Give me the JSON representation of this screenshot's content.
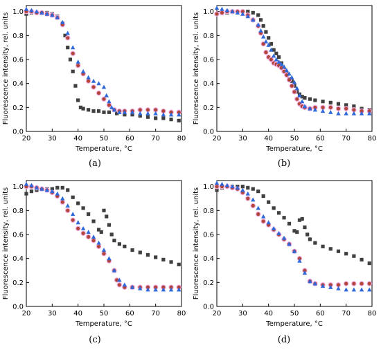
{
  "panel_labels": [
    "(a)",
    "(b)",
    "(c)",
    "(d)"
  ],
  "colors": {
    "black_series": "#404040",
    "red_series": "#b0453a",
    "blue_series": "#2f68d8",
    "pink_halo": "#f3b0e6",
    "axis": "#000000"
  },
  "chart_data": [
    {
      "type": "scatter",
      "xlabel": "Temperature, °C",
      "ylabel": "Fluorescence intensity, rel. units",
      "xlim": [
        20,
        80
      ],
      "ylim": [
        0,
        1.05
      ],
      "xticks": [
        20,
        30,
        40,
        50,
        60,
        70,
        80
      ],
      "yticks": [
        0.0,
        0.2,
        0.4,
        0.6,
        0.8,
        1.0
      ],
      "grid": false,
      "legend": "none",
      "series": [
        {
          "marker": "square",
          "color": "#404040",
          "x": [
            20,
            22,
            24,
            26,
            28,
            30,
            32,
            34,
            35,
            36,
            37,
            38,
            39,
            40,
            41,
            42,
            44,
            46,
            48,
            50,
            52,
            55,
            58,
            61,
            64,
            67,
            70,
            73,
            76,
            79
          ],
          "y": [
            0.98,
            0.99,
            0.99,
            0.99,
            0.99,
            0.98,
            0.96,
            0.9,
            0.8,
            0.7,
            0.6,
            0.5,
            0.38,
            0.26,
            0.2,
            0.19,
            0.18,
            0.17,
            0.17,
            0.16,
            0.16,
            0.15,
            0.14,
            0.14,
            0.13,
            0.12,
            0.11,
            0.11,
            0.1,
            0.09
          ]
        },
        {
          "marker": "circle",
          "color": "#b0453a",
          "x": [
            20,
            22,
            24,
            26,
            28,
            30,
            32,
            34,
            36,
            38,
            40,
            42,
            44,
            46,
            48,
            50,
            52,
            54,
            56,
            58,
            61,
            64,
            67,
            70,
            73,
            76,
            79
          ],
          "y": [
            1.0,
            1.0,
            0.99,
            0.99,
            0.98,
            0.97,
            0.95,
            0.89,
            0.78,
            0.65,
            0.55,
            0.48,
            0.42,
            0.37,
            0.32,
            0.27,
            0.22,
            0.18,
            0.17,
            0.17,
            0.17,
            0.18,
            0.18,
            0.18,
            0.17,
            0.16,
            0.16
          ]
        },
        {
          "marker": "triangle",
          "color": "#2f68d8",
          "x": [
            20,
            22,
            24,
            26,
            28,
            30,
            32,
            34,
            36,
            38,
            40,
            42,
            44,
            46,
            48,
            50,
            51,
            52,
            53,
            54,
            56,
            58,
            61,
            64,
            67,
            70,
            73,
            76,
            79
          ],
          "y": [
            1.02,
            1.01,
            1.0,
            0.99,
            0.98,
            0.97,
            0.95,
            0.91,
            0.82,
            0.7,
            0.58,
            0.5,
            0.45,
            0.42,
            0.4,
            0.37,
            0.3,
            0.25,
            0.2,
            0.18,
            0.16,
            0.16,
            0.16,
            0.15,
            0.15,
            0.15,
            0.14,
            0.14,
            0.14
          ]
        }
      ]
    },
    {
      "type": "scatter",
      "xlabel": "Temperature, °C",
      "ylabel": "Fluorescence intensity, rel. units",
      "xlim": [
        20,
        80
      ],
      "ylim": [
        0,
        1.05
      ],
      "xticks": [
        20,
        30,
        40,
        50,
        60,
        70,
        80
      ],
      "yticks": [
        0.0,
        0.2,
        0.4,
        0.6,
        0.8,
        1.0
      ],
      "grid": false,
      "legend": "none",
      "series": [
        {
          "marker": "square",
          "color": "#404040",
          "x": [
            20,
            22,
            24,
            26,
            28,
            30,
            32,
            34,
            36,
            37,
            38,
            39,
            40,
            41,
            42,
            43,
            44,
            45,
            46,
            47,
            48,
            49,
            50,
            51,
            52,
            53,
            54,
            56,
            58,
            61,
            64,
            67,
            70,
            73,
            76,
            79
          ],
          "y": [
            0.98,
            0.99,
            0.99,
            1.0,
            1.0,
            1.0,
            1.0,
            0.99,
            0.97,
            0.93,
            0.88,
            0.83,
            0.78,
            0.73,
            0.68,
            0.65,
            0.62,
            0.57,
            0.52,
            0.48,
            0.44,
            0.42,
            0.38,
            0.33,
            0.31,
            0.29,
            0.28,
            0.27,
            0.26,
            0.25,
            0.24,
            0.23,
            0.22,
            0.21,
            0.19,
            0.18
          ]
        },
        {
          "marker": "circle",
          "color": "#b0453a",
          "x": [
            20,
            22,
            24,
            26,
            28,
            30,
            32,
            34,
            36,
            37,
            38,
            39,
            40,
            41,
            42,
            43,
            44,
            45,
            46,
            47,
            48,
            49,
            50,
            51,
            52,
            53,
            54,
            56,
            58,
            61,
            64,
            67,
            70,
            73,
            76,
            79
          ],
          "y": [
            0.98,
            0.99,
            1.0,
            1.0,
            1.0,
            1.0,
            0.97,
            0.93,
            0.88,
            0.82,
            0.73,
            0.66,
            0.62,
            0.6,
            0.57,
            0.56,
            0.55,
            0.53,
            0.5,
            0.47,
            0.43,
            0.38,
            0.33,
            0.27,
            0.23,
            0.21,
            0.2,
            0.19,
            0.2,
            0.2,
            0.2,
            0.19,
            0.19,
            0.18,
            0.17,
            0.17
          ]
        },
        {
          "marker": "triangle",
          "color": "#2f68d8",
          "x": [
            20,
            22,
            24,
            26,
            28,
            30,
            32,
            34,
            36,
            37,
            38,
            39,
            40,
            41,
            42,
            43,
            44,
            45,
            46,
            47,
            48,
            49,
            50,
            51,
            52,
            53,
            54,
            56,
            58,
            61,
            64,
            67,
            70,
            73,
            76,
            79
          ],
          "y": [
            1.03,
            1.02,
            1.01,
            1.0,
            0.99,
            0.98,
            0.96,
            0.93,
            0.89,
            0.84,
            0.79,
            0.75,
            0.72,
            0.68,
            0.63,
            0.6,
            0.58,
            0.56,
            0.54,
            0.51,
            0.48,
            0.45,
            0.41,
            0.36,
            0.3,
            0.25,
            0.21,
            0.19,
            0.18,
            0.17,
            0.16,
            0.15,
            0.15,
            0.15,
            0.15,
            0.15
          ]
        }
      ]
    },
    {
      "type": "scatter",
      "xlabel": "Temperature, °C",
      "ylabel": "Fluorescence intensity, rel. units",
      "xlim": [
        20,
        80
      ],
      "ylim": [
        0,
        1.05
      ],
      "xticks": [
        20,
        30,
        40,
        50,
        60,
        70,
        80
      ],
      "yticks": [
        0.0,
        0.2,
        0.4,
        0.6,
        0.8,
        1.0
      ],
      "grid": false,
      "legend": "none",
      "series": [
        {
          "marker": "square",
          "color": "#404040",
          "x": [
            20,
            22,
            24,
            26,
            28,
            30,
            32,
            34,
            36,
            38,
            40,
            42,
            44,
            46,
            48,
            49,
            50,
            51,
            52,
            53,
            54,
            56,
            58,
            61,
            64,
            67,
            70,
            73,
            76,
            79
          ],
          "y": [
            0.94,
            0.96,
            0.97,
            0.98,
            0.98,
            0.98,
            0.99,
            0.99,
            0.97,
            0.91,
            0.86,
            0.82,
            0.77,
            0.71,
            0.64,
            0.62,
            0.8,
            0.75,
            0.68,
            0.6,
            0.55,
            0.52,
            0.5,
            0.47,
            0.45,
            0.43,
            0.41,
            0.39,
            0.37,
            0.35
          ]
        },
        {
          "marker": "circle",
          "color": "#b0453a",
          "x": [
            20,
            22,
            24,
            26,
            28,
            30,
            32,
            34,
            36,
            38,
            40,
            42,
            44,
            46,
            48,
            50,
            52,
            54,
            55,
            56,
            58,
            61,
            64,
            67,
            70,
            73,
            76,
            79
          ],
          "y": [
            1.0,
            1.0,
            0.99,
            0.98,
            0.97,
            0.95,
            0.92,
            0.87,
            0.8,
            0.72,
            0.65,
            0.61,
            0.58,
            0.55,
            0.5,
            0.44,
            0.38,
            0.3,
            0.22,
            0.18,
            0.16,
            0.16,
            0.16,
            0.16,
            0.16,
            0.16,
            0.16,
            0.16
          ]
        },
        {
          "marker": "triangle",
          "color": "#2f68d8",
          "x": [
            20,
            22,
            24,
            26,
            28,
            30,
            32,
            34,
            36,
            38,
            40,
            42,
            44,
            46,
            48,
            50,
            52,
            54,
            56,
            58,
            61,
            64,
            67,
            70,
            73,
            76,
            79
          ],
          "y": [
            1.02,
            1.01,
            0.99,
            0.98,
            0.97,
            0.96,
            0.94,
            0.9,
            0.84,
            0.77,
            0.7,
            0.65,
            0.62,
            0.58,
            0.53,
            0.47,
            0.4,
            0.3,
            0.22,
            0.18,
            0.16,
            0.15,
            0.14,
            0.14,
            0.14,
            0.14,
            0.14
          ]
        }
      ]
    },
    {
      "type": "scatter",
      "xlabel": "Temperature, °C",
      "ylabel": "Fluorescence intensity, rel. units",
      "xlim": [
        20,
        80
      ],
      "ylim": [
        0,
        1.05
      ],
      "xticks": [
        20,
        30,
        40,
        50,
        60,
        70,
        80
      ],
      "yticks": [
        0.0,
        0.2,
        0.4,
        0.6,
        0.8,
        1.0
      ],
      "grid": false,
      "legend": "none",
      "series": [
        {
          "marker": "square",
          "color": "#404040",
          "x": [
            20,
            22,
            24,
            26,
            28,
            30,
            32,
            34,
            36,
            38,
            40,
            42,
            44,
            46,
            48,
            50,
            51,
            52,
            53,
            54,
            55,
            56,
            58,
            61,
            64,
            67,
            70,
            73,
            76,
            79
          ],
          "y": [
            0.97,
            0.99,
            1.0,
            1.0,
            1.0,
            1.0,
            0.99,
            0.98,
            0.96,
            0.92,
            0.87,
            0.82,
            0.78,
            0.74,
            0.69,
            0.63,
            0.62,
            0.72,
            0.73,
            0.66,
            0.6,
            0.56,
            0.53,
            0.5,
            0.48,
            0.46,
            0.44,
            0.42,
            0.39,
            0.36
          ]
        },
        {
          "marker": "circle",
          "color": "#b0453a",
          "x": [
            20,
            22,
            24,
            26,
            28,
            30,
            32,
            34,
            36,
            38,
            40,
            42,
            44,
            46,
            48,
            50,
            52,
            54,
            56,
            58,
            61,
            64,
            67,
            70,
            73,
            76,
            79
          ],
          "y": [
            1.0,
            1.0,
            1.0,
            0.99,
            0.98,
            0.95,
            0.9,
            0.84,
            0.77,
            0.71,
            0.68,
            0.64,
            0.6,
            0.56,
            0.52,
            0.46,
            0.4,
            0.3,
            0.21,
            0.19,
            0.18,
            0.18,
            0.18,
            0.19,
            0.19,
            0.19,
            0.19
          ]
        },
        {
          "marker": "triangle",
          "color": "#2f68d8",
          "x": [
            20,
            22,
            24,
            26,
            28,
            30,
            32,
            34,
            36,
            38,
            40,
            42,
            44,
            46,
            48,
            50,
            52,
            54,
            56,
            58,
            61,
            64,
            67,
            70,
            73,
            76,
            79
          ],
          "y": [
            1.03,
            1.02,
            1.01,
            1.0,
            0.99,
            0.97,
            0.94,
            0.89,
            0.82,
            0.75,
            0.7,
            0.65,
            0.61,
            0.57,
            0.52,
            0.46,
            0.38,
            0.28,
            0.21,
            0.19,
            0.17,
            0.16,
            0.15,
            0.14,
            0.14,
            0.14,
            0.14
          ]
        }
      ]
    }
  ]
}
